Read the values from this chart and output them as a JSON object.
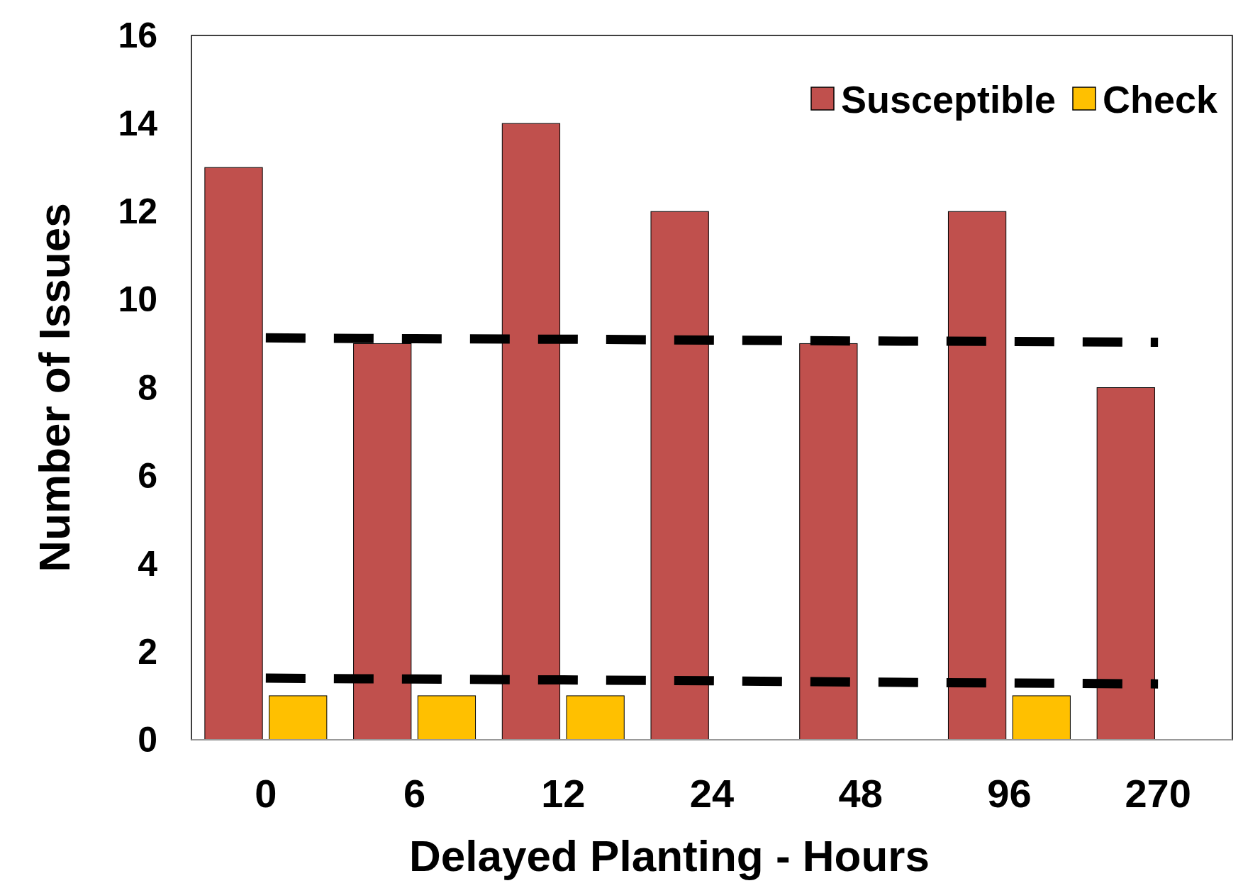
{
  "chart_data": {
    "type": "bar",
    "xlabel": "Delayed Planting - Hours",
    "ylabel": "Number of Issues",
    "categories": [
      "0",
      "6",
      "12",
      "24",
      "48",
      "96",
      "270"
    ],
    "series": [
      {
        "name": "Susceptible",
        "color": "#c0504d",
        "values": [
          13,
          9,
          14,
          12,
          9,
          12,
          8
        ]
      },
      {
        "name": "Check",
        "color": "#ffc000",
        "values": [
          1,
          1,
          1,
          0,
          0,
          1,
          0
        ]
      },
      {
        "type": "line",
        "color": "#000000",
        "line_style": "dashed",
        "x": [
          "0",
          "6",
          "12",
          "24",
          "48",
          "96",
          "270"
        ],
        "values": [
          9.13,
          9.11,
          9.1,
          9.08,
          9.06,
          9.05,
          9.03
        ]
      },
      {
        "type": "line",
        "color": "#000000",
        "line_style": "dashed",
        "x": [
          "0",
          "6",
          "12",
          "24",
          "48",
          "96",
          "270"
        ],
        "values": [
          1.4,
          1.38,
          1.36,
          1.34,
          1.31,
          1.29,
          1.27
        ]
      }
    ],
    "ylim": [
      0,
      16
    ],
    "yticks": [
      0,
      2,
      4,
      6,
      8,
      10,
      12,
      14,
      16
    ],
    "grid": false,
    "legend": "top right"
  }
}
